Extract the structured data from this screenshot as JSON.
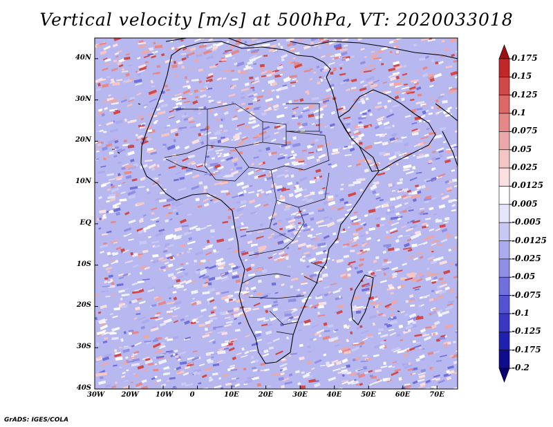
{
  "title": "Vertical velocity [m/s] at 500hPa, VT: 2020033018",
  "credit": "GrADS: IGES/COLA",
  "map": {
    "region": "Africa",
    "field": "vertical velocity at 500hPa",
    "lat_labels": [
      "40N",
      "30N",
      "20N",
      "10N",
      "EQ",
      "10S",
      "20S",
      "30S",
      "40S"
    ],
    "lon_labels": [
      "30W",
      "20W",
      "10W",
      "0",
      "10E",
      "20E",
      "30E",
      "40E",
      "50E",
      "60E",
      "70E"
    ],
    "lat_range": [
      -40,
      45
    ],
    "lon_range": [
      -30,
      76
    ]
  },
  "colorbar": {
    "labels": [
      "0.175",
      "0.15",
      "0.125",
      "0.1",
      "0.075",
      "0.05",
      "0.025",
      "0.0125",
      "0.005",
      "-0.005",
      "-0.0125",
      "-0.025",
      "-0.05",
      "-0.075",
      "-0.1",
      "-0.125",
      "-0.175",
      "-0.2"
    ],
    "colors": [
      "#a01010",
      "#c02828",
      "#d04848",
      "#dc6868",
      "#e48888",
      "#eca8a8",
      "#f4c6c6",
      "#fae0e0",
      "#ffffff",
      "#e4e4fa",
      "#c8c8f4",
      "#ababee",
      "#8f8fe6",
      "#7070dc",
      "#5454d2",
      "#3838c4",
      "#2020b0",
      "#100c90",
      "#080070"
    ]
  }
}
